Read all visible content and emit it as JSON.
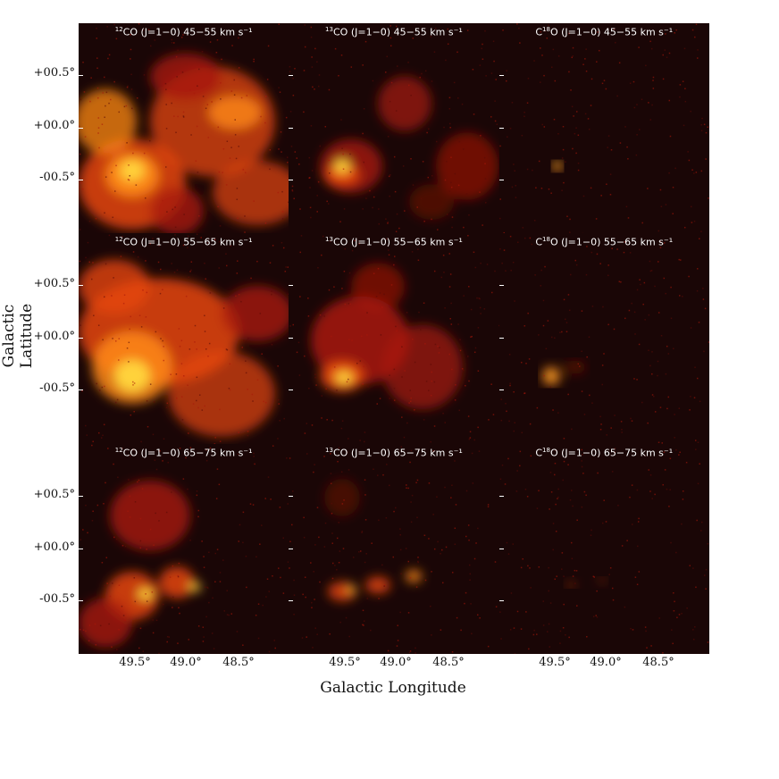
{
  "figure": {
    "xlabel": "Galactic Longitude",
    "ylabel": "Galactic Latitude",
    "xticks": [
      "49.5°",
      "49.0°",
      "48.5°"
    ],
    "yticks": [
      "+00.5°",
      "+00.0°",
      "-00.5°"
    ],
    "colormap": [
      "#1a0606",
      "#5a0c06",
      "#a8180a",
      "#e5460c",
      "#ff8a16",
      "#ffd23a",
      "#ffffa0"
    ]
  },
  "panels": [
    {
      "isotope": "12",
      "molecule": "CO",
      "prefix": "",
      "suffix": "",
      "transition": "(J=1−0)",
      "velocity": "45−55 km s⁻¹",
      "intensity": "very-high"
    },
    {
      "isotope": "13",
      "molecule": "CO",
      "prefix": "",
      "suffix": "",
      "transition": "(J=1−0)",
      "velocity": "45−55 km s⁻¹",
      "intensity": "medium"
    },
    {
      "isotope": "18",
      "molecule": "",
      "prefix": "C",
      "suffix": "O",
      "transition": "(J=1−0)",
      "velocity": "45−55 km s⁻¹",
      "intensity": "low"
    },
    {
      "isotope": "12",
      "molecule": "CO",
      "prefix": "",
      "suffix": "",
      "transition": "(J=1−0)",
      "velocity": "55−65 km s⁻¹",
      "intensity": "very-high"
    },
    {
      "isotope": "13",
      "molecule": "CO",
      "prefix": "",
      "suffix": "",
      "transition": "(J=1−0)",
      "velocity": "55−65 km s⁻¹",
      "intensity": "high"
    },
    {
      "isotope": "18",
      "molecule": "",
      "prefix": "C",
      "suffix": "O",
      "transition": "(J=1−0)",
      "velocity": "55−65 km s⁻¹",
      "intensity": "low"
    },
    {
      "isotope": "12",
      "molecule": "CO",
      "prefix": "",
      "suffix": "",
      "transition": "(J=1−0)",
      "velocity": "65−75 km s⁻¹",
      "intensity": "medium"
    },
    {
      "isotope": "13",
      "molecule": "CO",
      "prefix": "",
      "suffix": "",
      "transition": "(J=1−0)",
      "velocity": "65−75 km s⁻¹",
      "intensity": "low-medium"
    },
    {
      "isotope": "18",
      "molecule": "",
      "prefix": "C",
      "suffix": "O",
      "transition": "(J=1−0)",
      "velocity": "65−75 km s⁻¹",
      "intensity": "very-low"
    }
  ]
}
